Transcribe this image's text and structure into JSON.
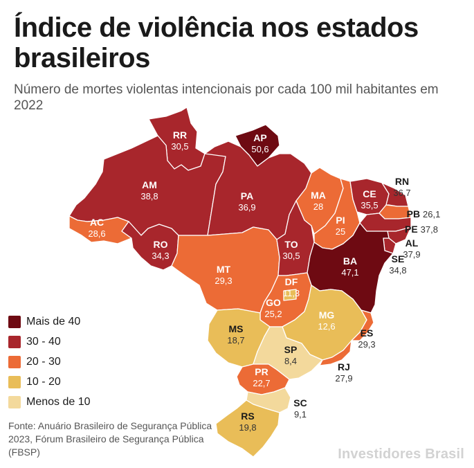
{
  "title": "Índice de violência nos estados brasileiros",
  "subtitle": "Número de mortes violentas intencionais por cada 100 mil habitantes em 2022",
  "colors": {
    "more_40": "#6e0a12",
    "b30_40": "#a8262c",
    "b20_30": "#ec6b36",
    "b10_20": "#e9bd58",
    "less_10": "#f3d99c"
  },
  "legend": [
    {
      "label": "Mais de 40",
      "color": "#6e0a12"
    },
    {
      "label": "30 - 40",
      "color": "#a8262c"
    },
    {
      "label": "20 - 30",
      "color": "#ec6b36"
    },
    {
      "label": "10 - 20",
      "color": "#e9bd58"
    },
    {
      "label": "Menos de 10",
      "color": "#f3d99c"
    }
  ],
  "states": [
    {
      "code": "RR",
      "value": "30,5",
      "range": "b30_40"
    },
    {
      "code": "AP",
      "value": "50,6",
      "range": "more_40"
    },
    {
      "code": "AM",
      "value": "38,8",
      "range": "b30_40"
    },
    {
      "code": "PA",
      "value": "36,9",
      "range": "b30_40"
    },
    {
      "code": "AC",
      "value": "28,6",
      "range": "b20_30"
    },
    {
      "code": "RO",
      "value": "34,3",
      "range": "b30_40"
    },
    {
      "code": "MT",
      "value": "29,3",
      "range": "b20_30"
    },
    {
      "code": "TO",
      "value": "30,5",
      "range": "b30_40"
    },
    {
      "code": "MA",
      "value": "28",
      "range": "b20_30"
    },
    {
      "code": "PI",
      "value": "25",
      "range": "b20_30"
    },
    {
      "code": "CE",
      "value": "35,5",
      "range": "b30_40"
    },
    {
      "code": "RN",
      "value": "36,7",
      "range": "b30_40"
    },
    {
      "code": "PB",
      "value": "26,1",
      "range": "b20_30"
    },
    {
      "code": "PE",
      "value": "37,8",
      "range": "b30_40"
    },
    {
      "code": "AL",
      "value": "37,9",
      "range": "b30_40"
    },
    {
      "code": "SE",
      "value": "34,8",
      "range": "b30_40"
    },
    {
      "code": "BA",
      "value": "47,1",
      "range": "more_40"
    },
    {
      "code": "DF",
      "value": "11,3",
      "range": "b10_20"
    },
    {
      "code": "GO",
      "value": "25,2",
      "range": "b20_30"
    },
    {
      "code": "MG",
      "value": "12,6",
      "range": "b10_20"
    },
    {
      "code": "ES",
      "value": "29,3",
      "range": "b20_30"
    },
    {
      "code": "MS",
      "value": "18,7",
      "range": "b10_20"
    },
    {
      "code": "SP",
      "value": "8,4",
      "range": "less_10"
    },
    {
      "code": "RJ",
      "value": "27,9",
      "range": "b20_30"
    },
    {
      "code": "PR",
      "value": "22,7",
      "range": "b20_30"
    },
    {
      "code": "SC",
      "value": "9,1",
      "range": "less_10"
    },
    {
      "code": "RS",
      "value": "19,8",
      "range": "b10_20"
    }
  ],
  "source": "Fonte: Anuário Brasileiro de Segurança Pública 2023, Fórum Brasileiro de Segurança Pública (FBSP)",
  "watermark": "Investidores Brasil"
}
